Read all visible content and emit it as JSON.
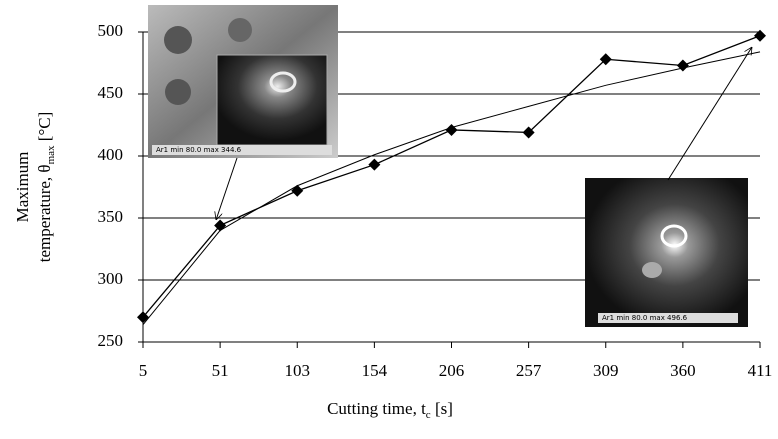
{
  "chart_data": {
    "type": "line",
    "categories": [
      "5",
      "51",
      "103",
      "154",
      "206",
      "257",
      "309",
      "360",
      "411"
    ],
    "series": [
      {
        "color": "#000000",
        "marker": "diamond",
        "values": [
          270,
          344,
          372,
          393,
          421,
          419,
          478,
          473,
          497
        ]
      },
      {
        "color": "#000000",
        "marker": "none",
        "values": [
          264,
          340,
          376,
          401,
          423,
          440,
          457,
          471,
          484
        ]
      }
    ],
    "ylim": [
      250,
      500
    ],
    "yticks": [
      250,
      300,
      350,
      400,
      450,
      500
    ],
    "grid": true,
    "ylabel": {
      "line1": "Maximum",
      "line2": "temperature, θ",
      "sub": "max",
      "unit": " [°C]"
    },
    "xlabel": {
      "text": "Cutting time, t",
      "sub": "c",
      "unit": " [s]"
    },
    "annotations": [
      "Ar1 min 80.0 max 344.6",
      "Ar1 min 80.0 max 496.6"
    ]
  }
}
